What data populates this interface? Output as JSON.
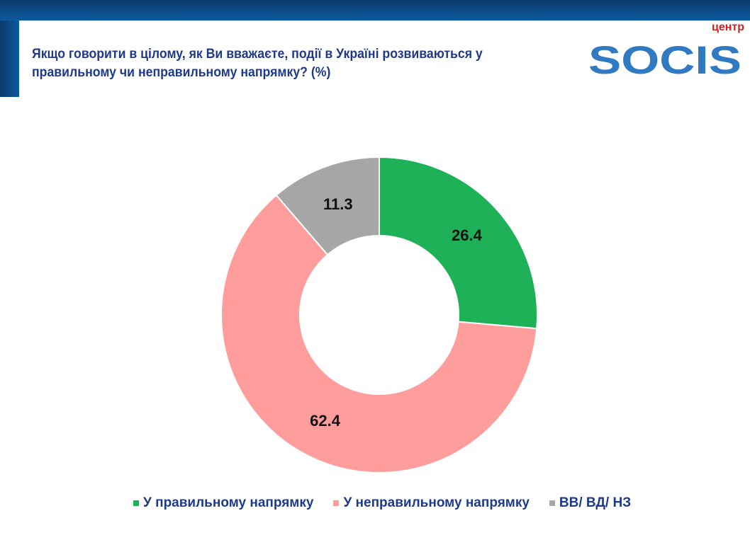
{
  "header": {
    "title": "Якщо говорити в цілому, як Ви вважаєте, події в Україні розвиваються у правильному чи неправильному напрямку? (%)"
  },
  "logo": {
    "text": "SOCIS",
    "subtext": "центр"
  },
  "chart_data": {
    "type": "pie",
    "donut": true,
    "categories": [
      "У правильному напрямку",
      "У неправильному напрямку",
      "ВВ/ ВД/ НЗ"
    ],
    "values": [
      26.4,
      62.4,
      11.3
    ],
    "colors": [
      "#1fb157",
      "#ff9d9d",
      "#a6a6a6"
    ],
    "legend_position": "bottom",
    "title": ""
  }
}
